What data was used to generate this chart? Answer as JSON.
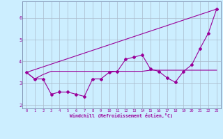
{
  "xlabel": "Windchill (Refroidissement éolien,°C)",
  "background_color": "#cceeff",
  "grid_color": "#aabbcc",
  "line_color": "#990099",
  "x_values": [
    0,
    1,
    2,
    3,
    4,
    5,
    6,
    7,
    8,
    9,
    10,
    11,
    12,
    13,
    14,
    15,
    16,
    17,
    18,
    19,
    20,
    21,
    22,
    23
  ],
  "series1": [
    3.5,
    3.2,
    3.2,
    2.5,
    2.6,
    2.6,
    2.5,
    2.4,
    3.2,
    3.2,
    3.5,
    3.55,
    4.1,
    4.2,
    4.3,
    3.65,
    3.55,
    3.25,
    3.05,
    3.55,
    3.85,
    4.6,
    5.3,
    6.4
  ],
  "series2": [
    3.5,
    3.2,
    3.4,
    3.55,
    3.55,
    3.55,
    3.55,
    3.55,
    3.55,
    3.55,
    3.55,
    3.55,
    3.55,
    3.55,
    3.55,
    3.6,
    3.6,
    3.6,
    3.6,
    3.6,
    3.6,
    3.6,
    3.6,
    3.6
  ],
  "series3_x": [
    0,
    23
  ],
  "series3_y": [
    3.5,
    6.4
  ],
  "xlim": [
    -0.5,
    23.5
  ],
  "ylim": [
    1.85,
    6.75
  ],
  "yticks": [
    2,
    3,
    4,
    5,
    6
  ],
  "xticks": [
    0,
    1,
    2,
    3,
    4,
    5,
    6,
    7,
    8,
    9,
    10,
    11,
    12,
    13,
    14,
    15,
    16,
    17,
    18,
    19,
    20,
    21,
    22,
    23
  ]
}
